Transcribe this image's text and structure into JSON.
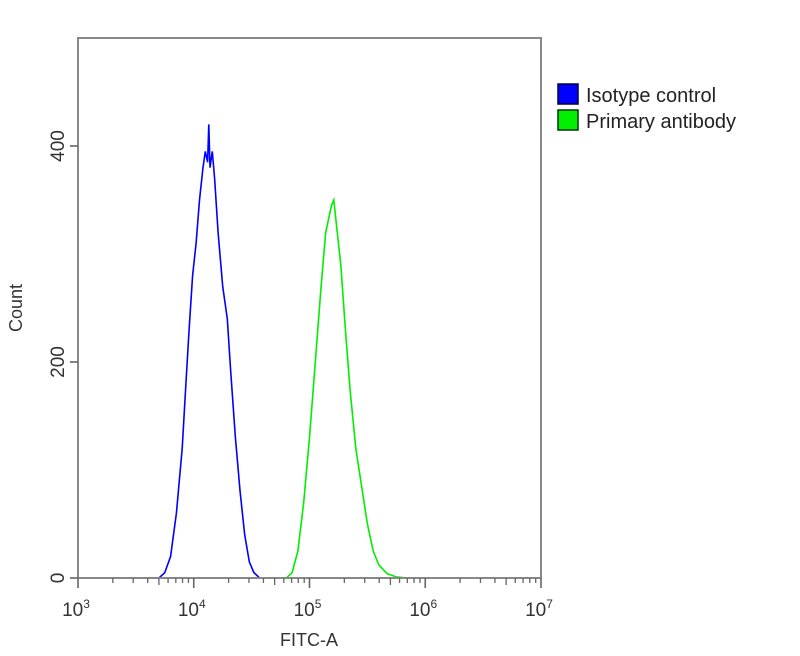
{
  "chart_data": {
    "type": "line",
    "title": "",
    "xlabel": "FITC-A",
    "ylabel": "Count",
    "xscale": "log",
    "xlim": [
      1000,
      10000000
    ],
    "ylim": [
      0,
      500
    ],
    "x_ticks": [
      {
        "base": "10",
        "exp": "3"
      },
      {
        "base": "10",
        "exp": "4"
      },
      {
        "base": "10",
        "exp": "5"
      },
      {
        "base": "10",
        "exp": "6"
      },
      {
        "base": "10",
        "exp": "7"
      }
    ],
    "y_ticks": [
      "0",
      "200",
      "400"
    ],
    "y_tick_values": [
      0,
      200,
      400
    ],
    "grid": false,
    "legend_position": "right-top",
    "series": [
      {
        "name": "Isotype control",
        "color": "#0000ff",
        "log10_x": [
          3.7,
          3.75,
          3.8,
          3.85,
          3.9,
          3.93,
          3.96,
          3.99,
          4.02,
          4.05,
          4.08,
          4.1,
          4.12,
          4.13,
          4.14,
          4.16,
          4.18,
          4.21,
          4.25,
          4.29,
          4.32,
          4.36,
          4.4,
          4.44,
          4.48,
          4.52,
          4.57
        ],
        "counts": [
          0,
          5,
          20,
          60,
          120,
          175,
          230,
          280,
          310,
          350,
          380,
          395,
          385,
          420,
          380,
          395,
          370,
          320,
          270,
          240,
          190,
          130,
          80,
          40,
          15,
          5,
          0
        ]
      },
      {
        "name": "Primary antibody",
        "color": "#00ee00",
        "log10_x": [
          4.8,
          4.85,
          4.9,
          4.95,
          5.0,
          5.05,
          5.1,
          5.14,
          5.17,
          5.19,
          5.21,
          5.23,
          5.27,
          5.31,
          5.35,
          5.4,
          5.45,
          5.5,
          5.55,
          5.6,
          5.67,
          5.75,
          5.85
        ],
        "counts": [
          0,
          5,
          25,
          70,
          130,
          200,
          270,
          320,
          335,
          345,
          350,
          330,
          290,
          230,
          175,
          120,
          85,
          50,
          25,
          12,
          4,
          1,
          0
        ]
      }
    ]
  }
}
